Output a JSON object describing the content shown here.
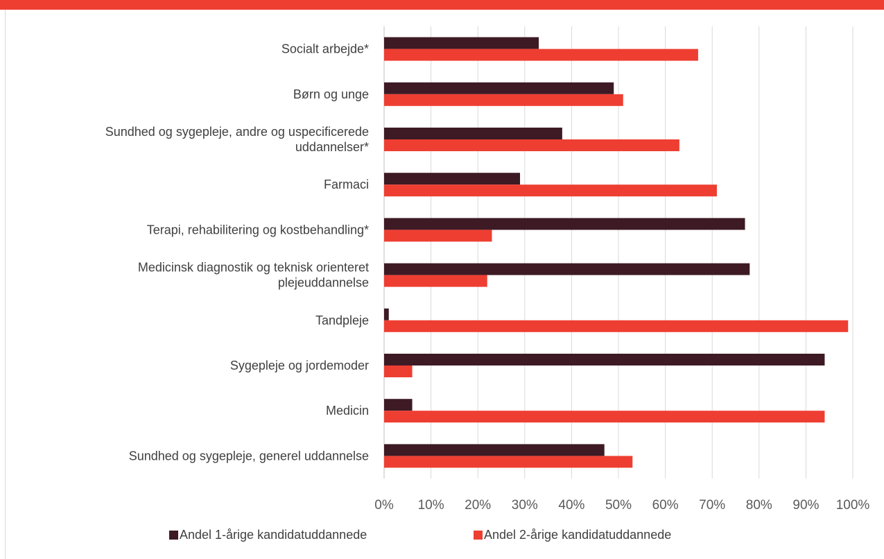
{
  "chart_data": {
    "type": "bar",
    "orientation": "horizontal",
    "stacked": false,
    "title": "",
    "xlabel": "",
    "ylabel": "",
    "xlim": [
      0,
      100
    ],
    "x_ticks": [
      "0%",
      "10%",
      "20%",
      "30%",
      "40%",
      "50%",
      "60%",
      "70%",
      "80%",
      "90%",
      "100%"
    ],
    "grid": "vertical",
    "legend_position": "bottom",
    "categories": [
      [
        "Socialt arbejde*"
      ],
      [
        "Børn og unge"
      ],
      [
        "Sundhed og sygepleje, andre og uspecificerede",
        "uddannelser*"
      ],
      [
        "Farmaci"
      ],
      [
        "Terapi, rehabilitering og kostbehandling*"
      ],
      [
        "Medicinsk diagnostik og teknisk orienteret",
        "plejeuddannelse"
      ],
      [
        "Tandpleje"
      ],
      [
        "Sygepleje og jordemoder"
      ],
      [
        "Medicin"
      ],
      [
        "Sundhed og sygepleje, generel uddannelse"
      ]
    ],
    "series": [
      {
        "name": "Andel 1-årige kandidatuddannede",
        "color": "#3d1a24",
        "values": [
          33,
          49,
          38,
          29,
          77,
          78,
          1,
          94,
          6,
          47
        ]
      },
      {
        "name": "Andel 2-årige kandidatuddannede",
        "color": "#ee3e32",
        "values": [
          67,
          51,
          63,
          71,
          23,
          22,
          99,
          6,
          94,
          53
        ]
      }
    ]
  },
  "colors": {
    "accent": "#ee3e32",
    "grid": "#d9d9d9"
  }
}
